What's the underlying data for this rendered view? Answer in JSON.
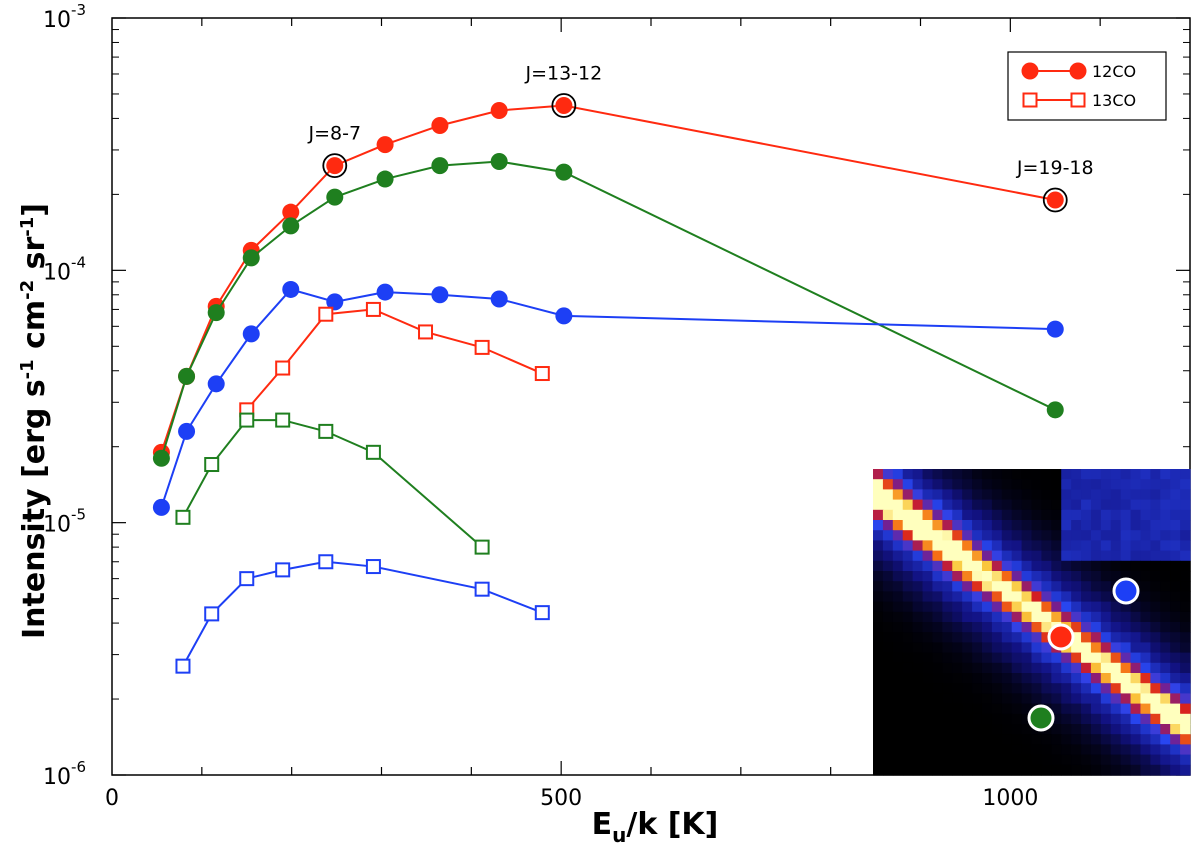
{
  "chart_data": {
    "type": "line",
    "xlabel": "E_u/k [K]",
    "xlabel_main": "E",
    "xlabel_sub": "u",
    "xlabel_rest": "/k [K]",
    "ylabel": "Intensity [erg s-1 cm-2 sr-1]",
    "ylabel_parts": [
      "Intensity [erg s",
      "-1",
      " cm",
      "-2",
      " sr",
      "-1",
      "]"
    ],
    "xlim": [
      0,
      1200
    ],
    "ylim": [
      1e-06,
      0.001
    ],
    "yscale": "log",
    "x_ticks": [
      {
        "value": 0,
        "label": "0"
      },
      {
        "value": 500,
        "label": "500"
      },
      {
        "value": 1000,
        "label": "1000"
      }
    ],
    "y_ticks": [
      {
        "value": 1e-06,
        "base": "10",
        "exp": "-6"
      },
      {
        "value": 1e-05,
        "base": "10",
        "exp": "-5"
      },
      {
        "value": 0.0001,
        "base": "10",
        "exp": "-4"
      },
      {
        "value": 0.001,
        "base": "10",
        "exp": "-3"
      }
    ],
    "legend": {
      "position": "top-right",
      "entries": [
        {
          "label": "12CO",
          "marker": "circle-filled",
          "color": "#ff2a10"
        },
        {
          "label": "13CO",
          "marker": "square-open",
          "color": "#ff2a10"
        }
      ]
    },
    "annotations": [
      {
        "text": "J=8-7",
        "x": 248,
        "y": 0.00026
      },
      {
        "text": "J=13-12",
        "x": 503,
        "y": 0.00045
      },
      {
        "text": "J=19-18",
        "x": 1050,
        "y": 0.00019
      }
    ],
    "series": [
      {
        "species": "12CO",
        "color": "#ff2a10",
        "marker": "circle-filled",
        "x": [
          55,
          83,
          116,
          155,
          199,
          248,
          304,
          365,
          431,
          503,
          1050
        ],
        "y": [
          1.9e-05,
          3.8e-05,
          7.2e-05,
          0.00012,
          0.00017,
          0.00026,
          0.000315,
          0.000375,
          0.00043,
          0.00045,
          0.00019
        ]
      },
      {
        "species": "12CO",
        "color": "#1f7f1f",
        "marker": "circle-filled",
        "x": [
          55,
          83,
          116,
          155,
          199,
          248,
          304,
          365,
          431,
          503,
          1050
        ],
        "y": [
          1.8e-05,
          3.8e-05,
          6.8e-05,
          0.000112,
          0.00015,
          0.000195,
          0.00023,
          0.00026,
          0.00027,
          0.000245,
          2.8e-05
        ]
      },
      {
        "species": "12CO",
        "color": "#1d3ff5",
        "marker": "circle-filled",
        "x": [
          55,
          83,
          116,
          155,
          199,
          248,
          304,
          365,
          431,
          503,
          1050
        ],
        "y": [
          1.15e-05,
          2.3e-05,
          3.55e-05,
          5.6e-05,
          8.4e-05,
          7.5e-05,
          8.2e-05,
          8e-05,
          7.7e-05,
          6.6e-05,
          5.85e-05
        ]
      },
      {
        "species": "13CO",
        "color": "#ff2a10",
        "marker": "square-open",
        "x": [
          150,
          190,
          238,
          291,
          349,
          412,
          479
        ],
        "y": [
          2.8e-05,
          4.1e-05,
          6.7e-05,
          7e-05,
          5.7e-05,
          4.95e-05,
          3.9e-05
        ]
      },
      {
        "species": "13CO",
        "color": "#1f7f1f",
        "marker": "square-open",
        "x": [
          79,
          111,
          150,
          190,
          238,
          291,
          412
        ],
        "y": [
          1.05e-05,
          1.7e-05,
          2.55e-05,
          2.55e-05,
          2.3e-05,
          1.9e-05,
          8e-06
        ]
      },
      {
        "species": "13CO",
        "color": "#1d3ff5",
        "marker": "square-open",
        "x": [
          79,
          111,
          150,
          190,
          238,
          291,
          412,
          479
        ],
        "y": [
          2.7e-06,
          4.35e-06,
          6e-06,
          6.5e-06,
          7e-06,
          6.7e-06,
          5.45e-06,
          4.4e-06
        ]
      }
    ],
    "inset": {
      "type": "heatmap",
      "markers": [
        {
          "color": "#1d3ff5"
        },
        {
          "color": "#ff2a10"
        },
        {
          "color": "#1f7f1f"
        }
      ]
    }
  }
}
